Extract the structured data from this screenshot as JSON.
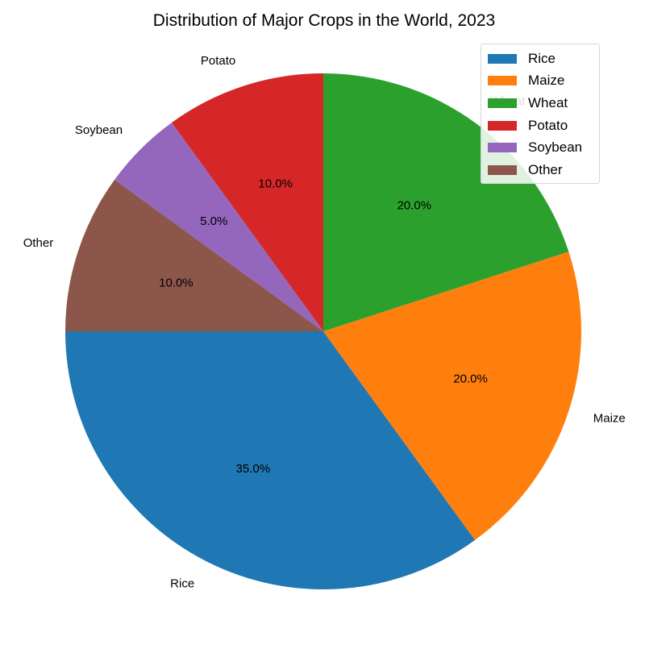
{
  "chart_data": {
    "type": "pie",
    "title": "Distribution of Major Crops in the World, 2023",
    "categories": [
      "Rice",
      "Maize",
      "Wheat",
      "Potato",
      "Soybean",
      "Other"
    ],
    "values": [
      35.0,
      20.0,
      20.0,
      10.0,
      5.0,
      10.0
    ],
    "pct_labels": [
      "35.0%",
      "20.0%",
      "20.0%",
      "10.0%",
      "5.0%",
      "10.0%"
    ],
    "colors": [
      "#1f77b4",
      "#ff7f0e",
      "#2ca02c",
      "#d62728",
      "#9467bd",
      "#8c564b"
    ],
    "start_angle_deg": 180,
    "direction": "counterclockwise",
    "legend": {
      "placement": "top-right",
      "entries": [
        "Rice",
        "Maize",
        "Wheat",
        "Potato",
        "Soybean",
        "Other"
      ]
    }
  }
}
